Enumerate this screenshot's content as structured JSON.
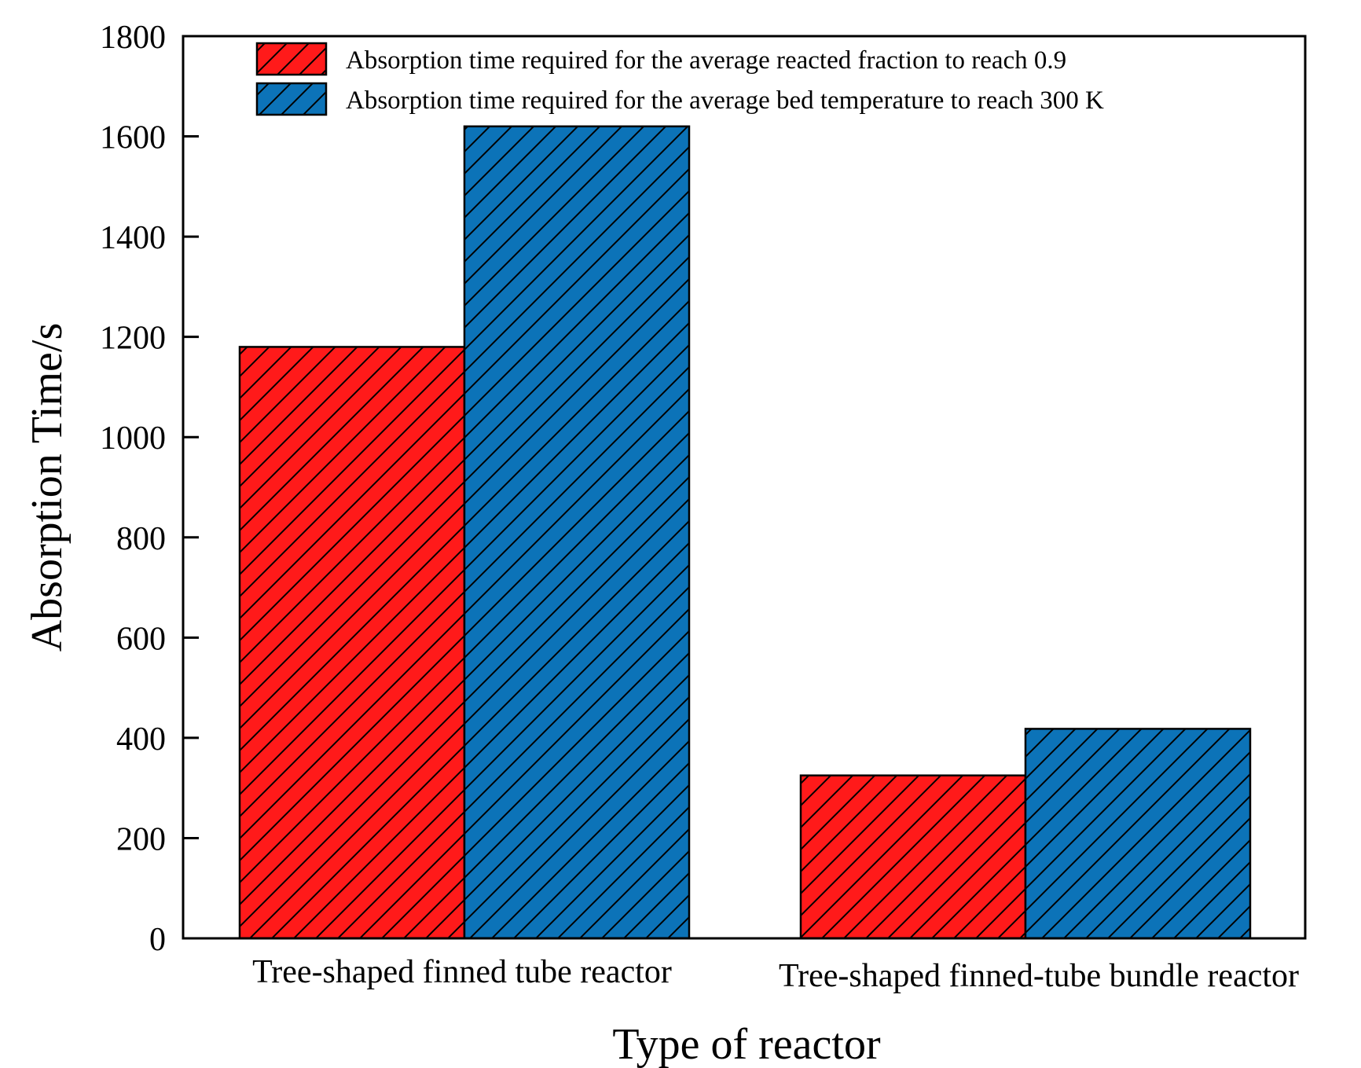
{
  "chart_data": {
    "type": "bar",
    "xlabel": "Type of reactor",
    "ylabel": "Absorption Time/s",
    "ylim": [
      0,
      1800
    ],
    "yticks": [
      0,
      200,
      400,
      600,
      800,
      1000,
      1200,
      1400,
      1600,
      1800
    ],
    "yticks_text": [
      "0",
      "200",
      "400",
      "600",
      "800",
      "1000",
      "1200",
      "1400",
      "1600",
      "1800"
    ],
    "categories": [
      "Tree-shaped finned tube reactor",
      "Tree-shaped finned-tube bundle reactor"
    ],
    "series": [
      {
        "name": "Absorption time required for the average reacted fraction to reach 0.9",
        "values": [
          1180,
          325
        ],
        "color": "#ff1a1a",
        "hatch": "diagonal"
      },
      {
        "name": "Absorption time required for the average bed temperature to reach 300 K",
        "values": [
          1620,
          418
        ],
        "color": "#0c73b8",
        "hatch": "diagonal"
      }
    ],
    "legend_position": "top-right",
    "grid": false
  }
}
